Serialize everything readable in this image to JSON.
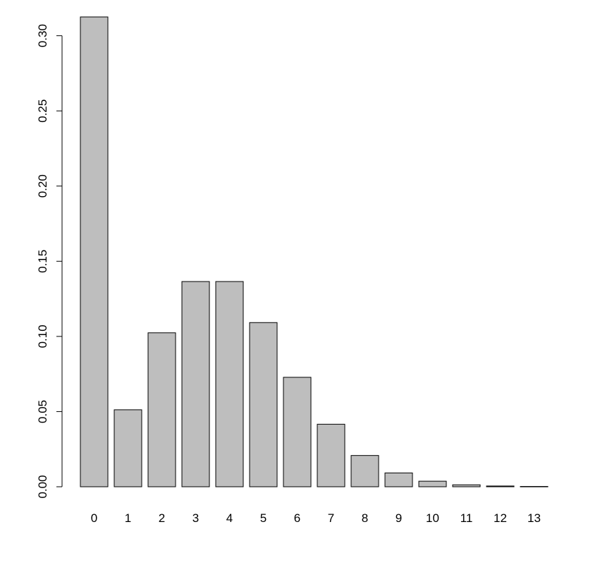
{
  "chart_data": {
    "type": "bar",
    "title": "",
    "xlabel": "",
    "ylabel": "",
    "categories": [
      "0",
      "1",
      "2",
      "3",
      "4",
      "5",
      "6",
      "7",
      "8",
      "9",
      "10",
      "11",
      "12",
      "13"
    ],
    "values": [
      0.3125,
      0.0512,
      0.1024,
      0.1365,
      0.1365,
      0.1092,
      0.0728,
      0.0416,
      0.0208,
      0.0092,
      0.0037,
      0.0013,
      0.0005,
      0.0002
    ],
    "ylim": [
      0,
      0.3125
    ],
    "yticks": [
      0,
      0.05,
      0.1,
      0.15,
      0.2,
      0.25,
      0.3
    ],
    "ytick_labels": [
      "0.00",
      "0.05",
      "0.10",
      "0.15",
      "0.20",
      "0.25",
      "0.30"
    ],
    "grid": false,
    "bar_color": "#bebebe",
    "edge_color": "#000000"
  }
}
